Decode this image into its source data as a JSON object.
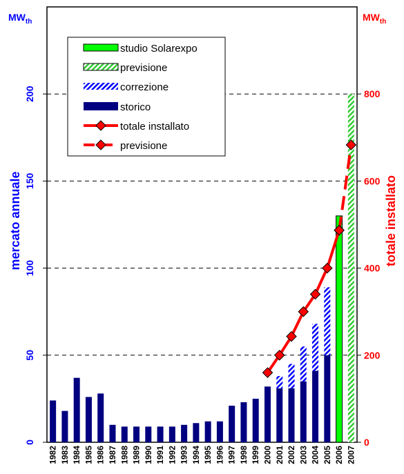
{
  "chart_data": {
    "type": "bar",
    "categories": [
      "1982",
      "1983",
      "1984",
      "1985",
      "1986",
      "1987",
      "1988",
      "1989",
      "1990",
      "1991",
      "1992",
      "1993",
      "1994",
      "1995",
      "1996",
      "1997",
      "1998",
      "1999",
      "2000",
      "2001",
      "2002",
      "2003",
      "2004",
      "2005",
      "2006",
      "2007"
    ],
    "left_axis": {
      "label": "mercato annuale",
      "unit_main": "MW",
      "unit_sub": "th",
      "ylim": [
        0,
        250
      ],
      "ticks": [
        "0",
        "50",
        "100",
        "150",
        "200"
      ],
      "tick_values": [
        0,
        50,
        100,
        150,
        200
      ],
      "color": "#0000ff"
    },
    "right_axis": {
      "label": "totale installato",
      "unit_main": "MW",
      "unit_sub": "th",
      "ylim": [
        0,
        1000
      ],
      "ticks": [
        "0",
        "200",
        "400",
        "600",
        "800"
      ],
      "tick_values": [
        0,
        200,
        400,
        600,
        800
      ],
      "color": "#ff0000"
    },
    "grid": "dashed horizontal at left ticks 50, 100, 150, 200",
    "series": [
      {
        "name": "storico",
        "color": "#000080",
        "pattern": "solid",
        "values": [
          24,
          18,
          37,
          26,
          28,
          10,
          9,
          9,
          9,
          9,
          9,
          10,
          11,
          12,
          12,
          21,
          23,
          25,
          32,
          31,
          31,
          35,
          41,
          50,
          null,
          null
        ]
      },
      {
        "name": "correzione",
        "color": "#0000ff",
        "pattern": "hatch",
        "stacked_on": "storico",
        "values": [
          0,
          0,
          0,
          0,
          0,
          0,
          0,
          0,
          0,
          0,
          0,
          0,
          0,
          0,
          0,
          0,
          0,
          0,
          0,
          7,
          14,
          20,
          27,
          39,
          null,
          null
        ]
      },
      {
        "name": "studio Solarexpo",
        "color": "#00ff00",
        "pattern": "solid",
        "values": [
          null,
          null,
          null,
          null,
          null,
          null,
          null,
          null,
          null,
          null,
          null,
          null,
          null,
          null,
          null,
          null,
          null,
          null,
          null,
          null,
          null,
          null,
          null,
          null,
          130,
          null
        ]
      },
      {
        "name": "previsione",
        "color": "#00cc00",
        "pattern": "hatch",
        "values": [
          null,
          null,
          null,
          null,
          null,
          null,
          null,
          null,
          null,
          null,
          null,
          null,
          null,
          null,
          null,
          null,
          null,
          null,
          null,
          null,
          null,
          null,
          null,
          null,
          null,
          200
        ]
      },
      {
        "name": "totale installato",
        "color": "#ff0000",
        "type": "line",
        "axis": "right",
        "values": [
          null,
          null,
          null,
          null,
          null,
          null,
          null,
          null,
          null,
          null,
          null,
          null,
          null,
          null,
          null,
          null,
          null,
          null,
          160,
          200,
          243,
          300,
          340,
          400,
          487,
          null
        ]
      },
      {
        "name": "previsione",
        "color": "#ff0000",
        "type": "dashed-line",
        "axis": "right",
        "values": [
          null,
          null,
          null,
          null,
          null,
          null,
          null,
          null,
          null,
          null,
          null,
          null,
          null,
          null,
          null,
          null,
          null,
          null,
          null,
          null,
          null,
          null,
          null,
          null,
          487,
          683
        ]
      }
    ],
    "legend": {
      "placement": "top-left",
      "items": [
        "studio Solarexpo",
        "previsione",
        "correzione",
        "storico",
        "totale installato",
        "previsione"
      ]
    }
  }
}
